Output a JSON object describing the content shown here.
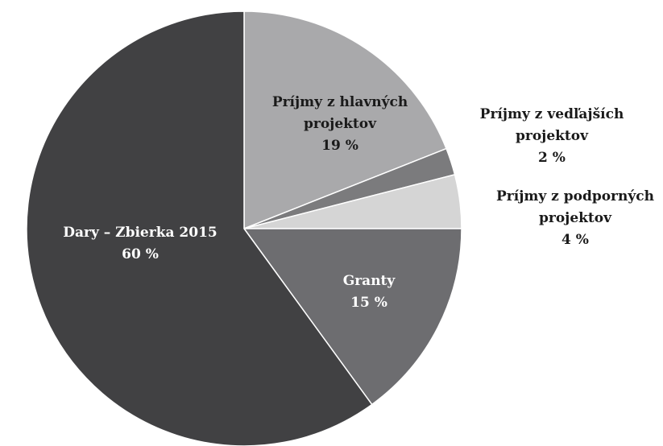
{
  "chart_data": {
    "type": "pie",
    "categories": [
      "Príjmy z hlavných projektov",
      "Príjmy z vedľajších projektov",
      "Príjmy z podporných projektov",
      "Granty",
      "Dary – Zbierka 2015"
    ],
    "values": [
      19,
      2,
      4,
      15,
      60
    ],
    "value_labels": [
      "19 %",
      "2 %",
      "4 %",
      "15 %",
      "60 %"
    ],
    "colors": [
      "#a9a9ab",
      "#7b7b7d",
      "#d5d5d5",
      "#6d6d70",
      "#414143"
    ]
  }
}
